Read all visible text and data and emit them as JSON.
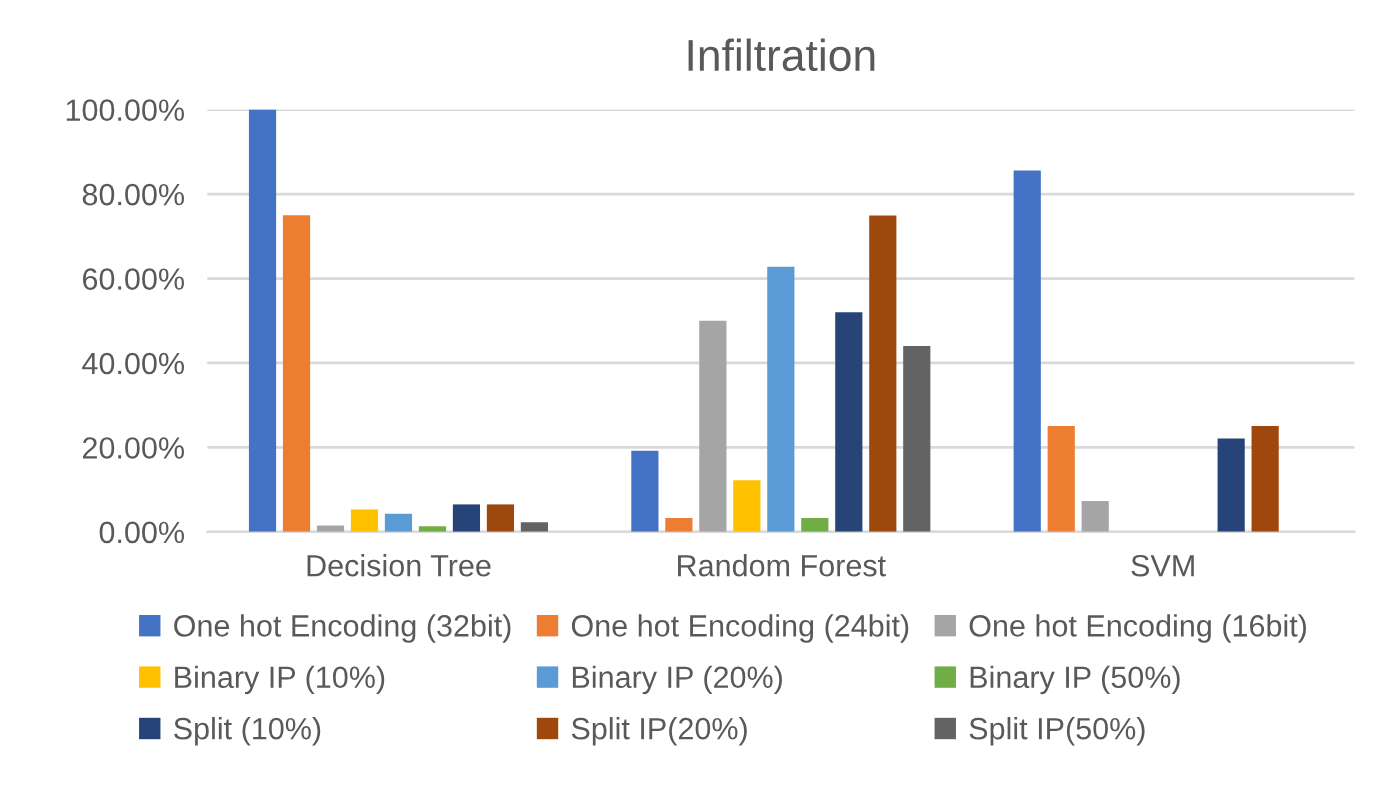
{
  "chart_data": {
    "type": "bar",
    "title": "Infiltration",
    "categories": [
      "Decision Tree",
      "Random Forest",
      "SVM"
    ],
    "series": [
      {
        "name": "One hot Encoding (32bit)",
        "color": "#4472c4",
        "values": [
          100,
          19.2,
          85.6
        ]
      },
      {
        "name": "One hot Encoding (24bit)",
        "color": "#ed7d31",
        "values": [
          75,
          3.3,
          25.1
        ]
      },
      {
        "name": "One hot Encoding (16bit)",
        "color": "#a5a5a5",
        "values": [
          1.5,
          50,
          7.3
        ]
      },
      {
        "name": "Binary IP (10%)",
        "color": "#ffc000",
        "values": [
          5.3,
          12.2,
          0
        ]
      },
      {
        "name": "Binary IP (20%)",
        "color": "#5b9bd5",
        "values": [
          4.3,
          62.8,
          0
        ]
      },
      {
        "name": "Binary IP (50%)",
        "color": "#70ad47",
        "values": [
          1.3,
          3.3,
          0
        ]
      },
      {
        "name": "Split (10%)",
        "color": "#264478",
        "values": [
          6.5,
          52,
          22.1
        ]
      },
      {
        "name": "Split IP(20%)",
        "color": "#9e480e",
        "values": [
          6.5,
          74.9,
          25.1
        ]
      },
      {
        "name": "Split IP(50%)",
        "color": "#636363",
        "values": [
          2.3,
          44,
          0
        ]
      }
    ],
    "ylim": [
      0,
      100
    ],
    "yticks": [
      {
        "value": 0,
        "label": "0.00%"
      },
      {
        "value": 20,
        "label": "20.00%"
      },
      {
        "value": 40,
        "label": "40.00%"
      },
      {
        "value": 60,
        "label": "60.00%"
      },
      {
        "value": 80,
        "label": "80.00%"
      },
      {
        "value": 100,
        "label": "100.00%"
      }
    ],
    "grid": "y",
    "legend": "bottom"
  }
}
